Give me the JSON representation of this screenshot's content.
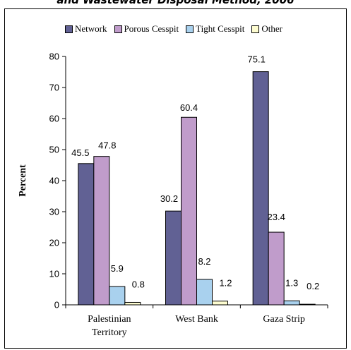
{
  "chart_data": {
    "type": "bar",
    "title": "and Wastewater Disposal Method, 2006",
    "ylabel": "Percent",
    "xlabel": "",
    "ylim": [
      0,
      80
    ],
    "yticks": [
      0,
      10,
      20,
      30,
      40,
      50,
      60,
      70,
      80
    ],
    "categories": [
      [
        "Palestinian",
        "Territory"
      ],
      [
        "West Bank"
      ],
      [
        "Gaza Strip"
      ]
    ],
    "series": [
      {
        "name": "Network",
        "color": "#616194",
        "values": [
          45.5,
          30.2,
          75.1
        ],
        "labels": [
          "45.5",
          "30.2",
          "75.1"
        ]
      },
      {
        "name": "Porous Cesspit",
        "color": "#c09ccb",
        "values": [
          47.8,
          60.4,
          23.4
        ],
        "labels": [
          "47.8",
          "60.4",
          "23.4"
        ]
      },
      {
        "name": "Tight Cesspit",
        "color": "#a9d1ee",
        "values": [
          5.9,
          8.2,
          1.3
        ],
        "labels": [
          "5.9",
          "8.2",
          "1.3"
        ]
      },
      {
        "name": "Other",
        "color": "#fdfcd0",
        "values": [
          0.8,
          1.2,
          0.2
        ],
        "labels": [
          "0.8",
          "1.2",
          "0.2"
        ]
      }
    ],
    "legend_position": "top",
    "grid": false
  }
}
